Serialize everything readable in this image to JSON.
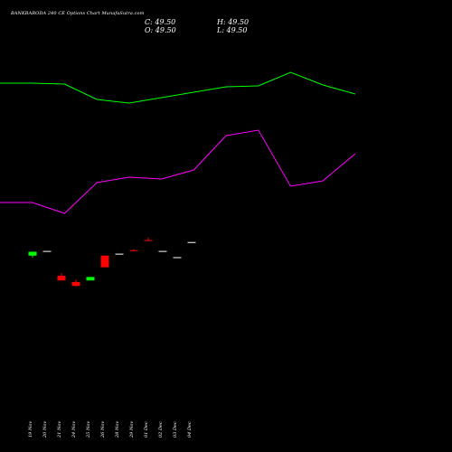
{
  "header": {
    "title": "BANKBARODA 240 CE Options Chart MunafaSutra.com",
    "close": "C: 49.50",
    "open": "O: 49.50",
    "high": "H: 49.50",
    "low": "L: 49.50"
  },
  "colors": {
    "background": "#000000",
    "upper_line": "#00ff00",
    "lower_line": "#ff00ff",
    "bull": "#00ff00",
    "bear": "#ff0000",
    "doji": "#ffffff"
  },
  "chart_data": {
    "type": "candlestick",
    "title": "BANKBARODA 240 CE Options Chart",
    "categories": [
      "19 Nov",
      "20 Nov",
      "21 Nov",
      "24 Nov",
      "25 Nov",
      "26 Nov",
      "28 Nov",
      "29 Nov",
      "01 Dec",
      "02 Dec",
      "03 Dec",
      "04 Dec"
    ],
    "ohlc": [
      {
        "o": 46.0,
        "h": 47.0,
        "l": 45.5,
        "c": 47.0
      },
      {
        "o": 47.2,
        "h": 47.2,
        "l": 47.2,
        "c": 47.2
      },
      {
        "o": 40.8,
        "h": 41.5,
        "l": 39.6,
        "c": 39.6
      },
      {
        "o": 39.2,
        "h": 39.8,
        "l": 38.0,
        "c": 38.2
      },
      {
        "o": 39.6,
        "h": 40.5,
        "l": 39.6,
        "c": 40.5
      },
      {
        "o": 46.0,
        "h": 46.0,
        "l": 43.0,
        "c": 43.0
      },
      {
        "o": 46.5,
        "h": 46.5,
        "l": 46.5,
        "c": 46.5
      },
      {
        "o": 47.4,
        "h": 47.6,
        "l": 47.2,
        "c": 47.2
      },
      {
        "o": 50.0,
        "h": 50.7,
        "l": 49.8,
        "c": 49.8
      },
      {
        "o": 47.2,
        "h": 47.2,
        "l": 47.2,
        "c": 47.2
      },
      {
        "o": 45.6,
        "h": 45.6,
        "l": 45.6,
        "c": 45.6
      },
      {
        "o": 49.5,
        "h": 49.5,
        "l": 49.5,
        "c": 49.5
      }
    ],
    "upper_band": [
      84,
      84,
      83.5,
      75,
      73,
      76,
      79,
      82,
      82.5,
      90,
      83,
      78
    ],
    "lower_band": [
      18,
      18,
      12,
      29,
      32,
      31,
      36,
      55,
      58,
      27,
      30,
      45
    ]
  }
}
